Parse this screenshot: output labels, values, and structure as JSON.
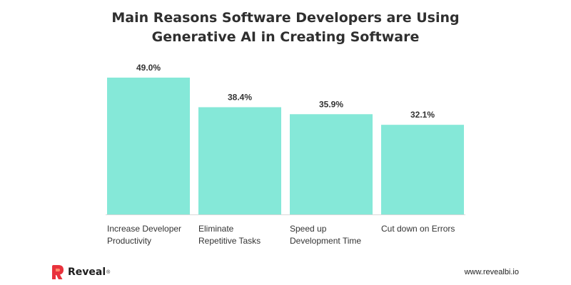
{
  "chart_data": {
    "type": "bar",
    "title": [
      "Main Reasons Software Developers are Using",
      "Generative AI in Creating Software"
    ],
    "categories": [
      [
        "Increase Developer",
        "Productivity"
      ],
      [
        "Eliminate",
        "Repetitive Tasks"
      ],
      [
        "Speed up",
        "Development Time"
      ],
      [
        "Cut down on Errors"
      ]
    ],
    "values": [
      49.0,
      38.4,
      35.9,
      32.1
    ],
    "value_labels": [
      "49.0%",
      "38.4%",
      "35.9%",
      "32.1%"
    ],
    "ylim": [
      0,
      50
    ],
    "grid": false,
    "legend": "none",
    "bar_color": "#85e8d8",
    "axis_color": "#d9d9d9"
  },
  "branding": {
    "logo_name": "Reveal",
    "logo_mark": "®",
    "website": "www.revealbi.io",
    "logo_color": "#e8323c"
  }
}
